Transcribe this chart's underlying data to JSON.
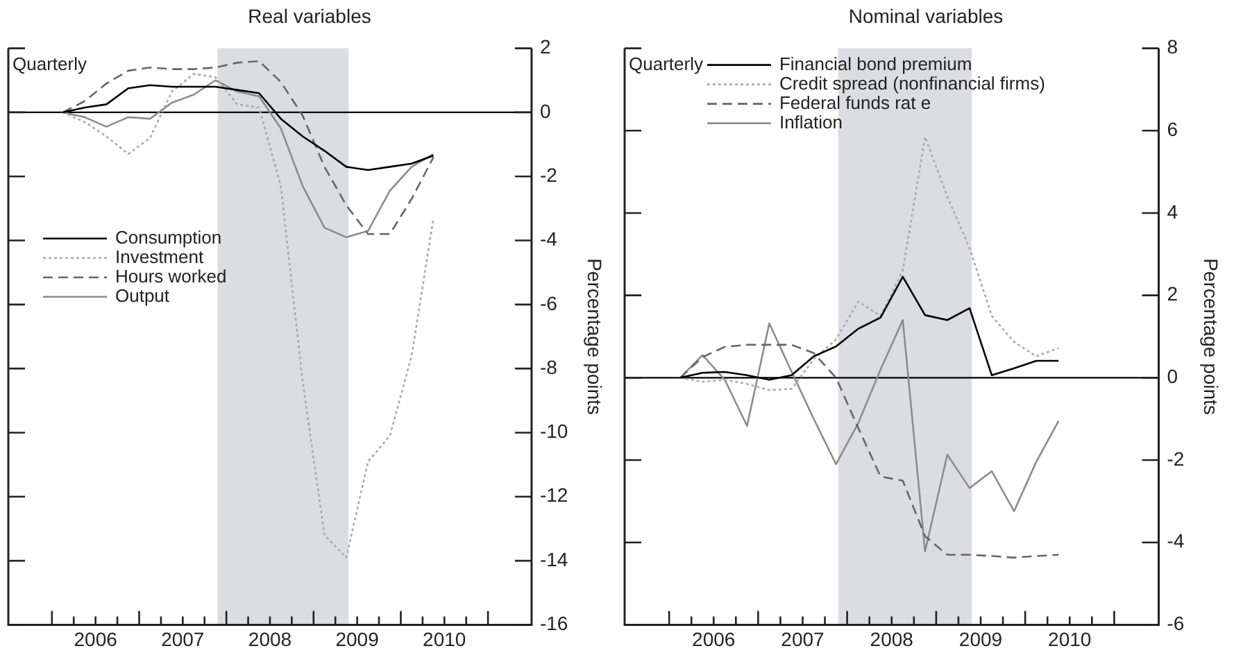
{
  "chart_data": [
    {
      "type": "line",
      "title": "Real variables",
      "ylabel": "Percentage points",
      "annotations": [
        "Quarterly"
      ],
      "legend": "left",
      "xlim": [
        2005.5,
        2011.5
      ],
      "ylim": [
        -16,
        2
      ],
      "yticks": [
        -16,
        -14,
        -12,
        -10,
        -8,
        -6,
        -4,
        -2,
        0,
        2
      ],
      "xticks": [
        {
          "value": 2006,
          "label": null
        },
        {
          "value": 2006.25,
          "label": null
        },
        {
          "value": 2006.5,
          "label": "2006"
        },
        {
          "value": 2006.75,
          "label": null
        },
        {
          "value": 2007,
          "label": null
        },
        {
          "value": 2007.25,
          "label": null
        },
        {
          "value": 2007.5,
          "label": "2007"
        },
        {
          "value": 2007.75,
          "label": null
        },
        {
          "value": 2008,
          "label": null
        },
        {
          "value": 2008.25,
          "label": null
        },
        {
          "value": 2008.5,
          "label": "2008"
        },
        {
          "value": 2008.75,
          "label": null
        },
        {
          "value": 2009,
          "label": null
        },
        {
          "value": 2009.25,
          "label": null
        },
        {
          "value": 2009.5,
          "label": "2009"
        },
        {
          "value": 2009.75,
          "label": null
        },
        {
          "value": 2010,
          "label": null
        },
        {
          "value": 2010.25,
          "label": null
        },
        {
          "value": 2010.5,
          "label": "2010"
        },
        {
          "value": 2010.75,
          "label": null
        },
        {
          "value": 2011,
          "label": null
        }
      ],
      "x": [
        2006.125,
        2006.375,
        2006.625,
        2006.875,
        2007.125,
        2007.375,
        2007.625,
        2007.875,
        2008.125,
        2008.375,
        2008.625,
        2008.875,
        2009.125,
        2009.375,
        2009.625,
        2009.875,
        2010.125,
        2010.375
      ],
      "bands": [
        {
          "axis": "x",
          "from": 2007.9,
          "to": 2009.4,
          "color": "#dcdde0"
        }
      ],
      "ref_lines": [
        {
          "axis": "y",
          "value": 0,
          "color": "#000000"
        }
      ],
      "series": [
        {
          "name": "Consumption",
          "color": "#000000",
          "line_style": "solid",
          "values": [
            0,
            0.15,
            0.25,
            0.75,
            0.85,
            0.8,
            0.8,
            0.8,
            0.7,
            0.6,
            -0.2,
            -0.75,
            -1.2,
            -1.7,
            -1.8,
            -1.7,
            -1.6,
            -1.35
          ]
        },
        {
          "name": "Investment",
          "color": "#aaaaaa",
          "line_style": "dotted",
          "values": [
            0,
            -0.3,
            -0.75,
            -1.3,
            -0.8,
            0.65,
            1.2,
            1.1,
            0.25,
            0.15,
            -2.3,
            -8.4,
            -13.2,
            -13.9,
            -10.9,
            -10.1,
            -7.6,
            -3.3
          ]
        },
        {
          "name": "Hours worked",
          "color": "#666666",
          "line_style": "dashed",
          "values": [
            0,
            0.35,
            0.9,
            1.3,
            1.4,
            1.35,
            1.35,
            1.4,
            1.55,
            1.6,
            0.95,
            -0.1,
            -1.7,
            -2.9,
            -3.8,
            -3.8,
            -2.7,
            -1.4
          ]
        },
        {
          "name": "Output",
          "color": "#8c8c8c",
          "line_style": "solid",
          "values": [
            0,
            -0.15,
            -0.45,
            -0.15,
            -0.2,
            0.3,
            0.55,
            1.0,
            0.65,
            0.5,
            -0.5,
            -2.3,
            -3.6,
            -3.9,
            -3.7,
            -2.45,
            -1.7,
            -1.3
          ]
        }
      ]
    },
    {
      "type": "line",
      "title": "Nominal variables",
      "ylabel": "Percentage points",
      "annotations": [
        "Quarterly"
      ],
      "legend": "top left",
      "xlim": [
        2005.5,
        2011.5
      ],
      "ylim": [
        -6,
        8
      ],
      "yticks": [
        -6,
        -4,
        -2,
        0,
        2,
        4,
        6,
        8
      ],
      "xticks": [
        {
          "value": 2006,
          "label": null
        },
        {
          "value": 2006.25,
          "label": null
        },
        {
          "value": 2006.5,
          "label": "2006"
        },
        {
          "value": 2006.75,
          "label": null
        },
        {
          "value": 2007,
          "label": null
        },
        {
          "value": 2007.25,
          "label": null
        },
        {
          "value": 2007.5,
          "label": "2007"
        },
        {
          "value": 2007.75,
          "label": null
        },
        {
          "value": 2008,
          "label": null
        },
        {
          "value": 2008.25,
          "label": null
        },
        {
          "value": 2008.5,
          "label": "2008"
        },
        {
          "value": 2008.75,
          "label": null
        },
        {
          "value": 2009,
          "label": null
        },
        {
          "value": 2009.25,
          "label": null
        },
        {
          "value": 2009.5,
          "label": "2009"
        },
        {
          "value": 2009.75,
          "label": null
        },
        {
          "value": 2010,
          "label": null
        },
        {
          "value": 2010.25,
          "label": null
        },
        {
          "value": 2010.5,
          "label": "2010"
        },
        {
          "value": 2010.75,
          "label": null
        },
        {
          "value": 2011,
          "label": null
        }
      ],
      "x": [
        2006.125,
        2006.375,
        2006.625,
        2006.875,
        2007.125,
        2007.375,
        2007.625,
        2007.875,
        2008.125,
        2008.375,
        2008.625,
        2008.875,
        2009.125,
        2009.375,
        2009.625,
        2009.875,
        2010.125,
        2010.375
      ],
      "bands": [
        {
          "axis": "x",
          "from": 2007.9,
          "to": 2009.4,
          "color": "#dcdde0"
        }
      ],
      "ref_lines": [
        {
          "axis": "y",
          "value": 0,
          "color": "#000000"
        }
      ],
      "series": [
        {
          "name": "Financial bond premium",
          "color": "#000000",
          "line_style": "solid",
          "values": [
            0,
            0.12,
            0.14,
            0.06,
            -0.05,
            0.06,
            0.52,
            0.76,
            1.19,
            1.46,
            2.45,
            1.52,
            1.4,
            1.69,
            0.06,
            0.23,
            0.41,
            0.41
          ]
        },
        {
          "name": "Credit spread (nonfinancial firms)",
          "color": "#aaaaaa",
          "line_style": "dotted",
          "values": [
            0,
            -0.1,
            -0.05,
            -0.15,
            -0.3,
            -0.27,
            0.45,
            0.93,
            1.85,
            1.5,
            2.6,
            5.85,
            4.4,
            3.15,
            1.5,
            0.87,
            0.52,
            0.72
          ]
        },
        {
          "name": "Federal funds rat e",
          "color": "#666666",
          "line_style": "dashed",
          "values": [
            0,
            0.5,
            0.75,
            0.8,
            0.8,
            0.8,
            0.6,
            0,
            -1.22,
            -2.4,
            -2.5,
            -3.85,
            -4.3,
            -4.3,
            -4.33,
            -4.37,
            -4.33,
            -4.3
          ]
        },
        {
          "name": "Inflation",
          "color": "#8c8c8c",
          "line_style": "solid",
          "values": [
            0,
            0.55,
            -0.05,
            -1.17,
            1.32,
            0.15,
            -1.0,
            -2.1,
            -1.1,
            0.2,
            1.4,
            -4.22,
            -1.87,
            -2.68,
            -2.27,
            -3.24,
            -2.04,
            -1.05
          ]
        }
      ]
    }
  ]
}
